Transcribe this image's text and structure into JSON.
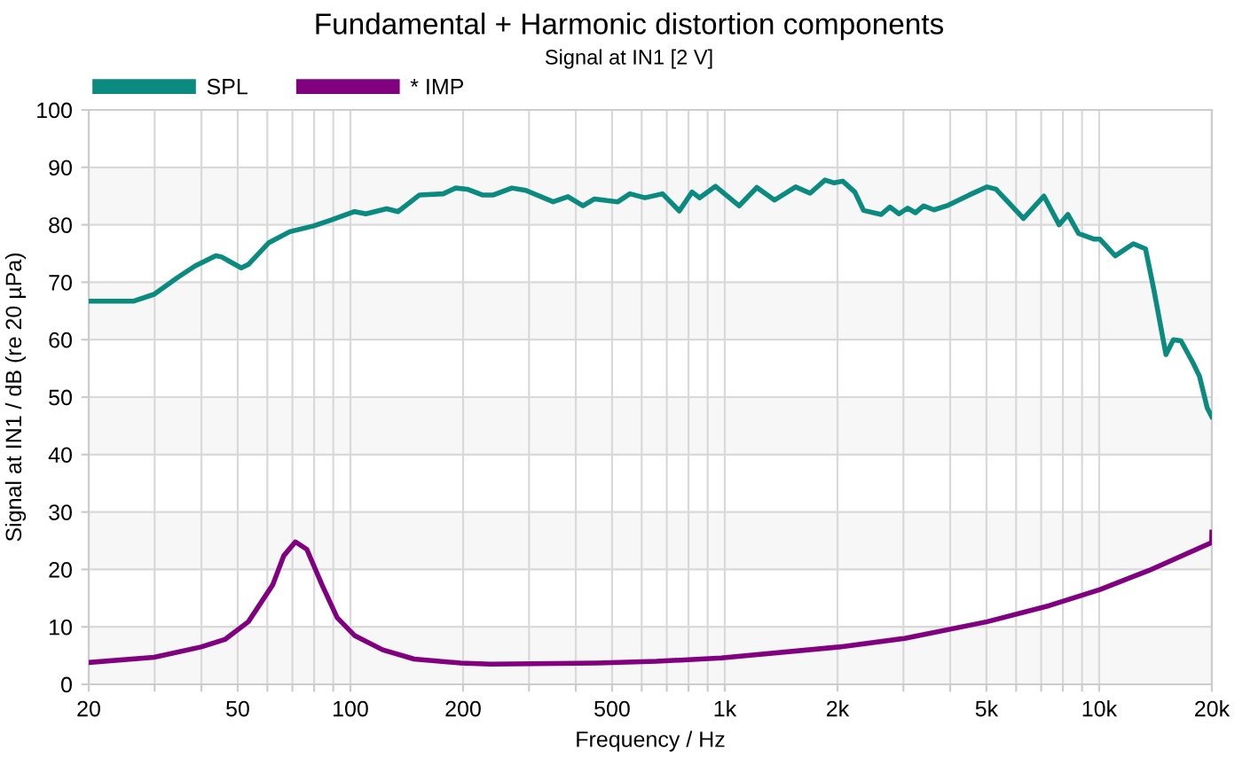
{
  "chart_data": {
    "type": "line",
    "title": "Fundamental + Harmonic distortion components",
    "subtitle": "Signal at IN1 [2 V]",
    "xlabel": "Frequency / Hz",
    "ylabel": "Signal at IN1 / dB (re 20 µPa)",
    "log": "x",
    "grid": true,
    "legend": "top left",
    "line_style": "solid",
    "marker": "none",
    "xlim": [
      20,
      20000
    ],
    "ylim": [
      0,
      100
    ],
    "xticks": [
      20,
      {
        "value": 30,
        "label": null
      },
      {
        "value": 40,
        "label": null
      },
      50,
      {
        "value": 60,
        "label": null
      },
      {
        "value": 70,
        "label": null
      },
      {
        "value": 80,
        "label": null
      },
      {
        "value": 90,
        "label": null
      },
      100,
      200,
      {
        "value": 300,
        "label": null
      },
      {
        "value": 400,
        "label": null
      },
      500,
      {
        "value": 600,
        "label": null
      },
      {
        "value": 700,
        "label": null
      },
      {
        "value": 800,
        "label": null
      },
      {
        "value": 900,
        "label": null
      },
      {
        "value": 1000,
        "label": "1k"
      },
      {
        "value": 2000,
        "label": "2k"
      },
      {
        "value": 3000,
        "label": null
      },
      {
        "value": 4000,
        "label": null
      },
      {
        "value": 5000,
        "label": "5k"
      },
      {
        "value": 6000,
        "label": null
      },
      {
        "value": 7000,
        "label": null
      },
      {
        "value": 8000,
        "label": null
      },
      {
        "value": 9000,
        "label": null
      },
      {
        "value": 10000,
        "label": "10k"
      },
      {
        "value": 20000,
        "label": "20k"
      }
    ],
    "yticks": [
      0,
      10,
      20,
      30,
      40,
      50,
      60,
      70,
      80,
      90,
      100
    ],
    "bands": [
      {
        "axis": "y",
        "from": 0,
        "to": 10,
        "color": "#f7f7f7"
      },
      {
        "axis": "y",
        "from": 20,
        "to": 30,
        "color": "#f7f7f7"
      },
      {
        "axis": "y",
        "from": 40,
        "to": 50,
        "color": "#f7f7f7"
      },
      {
        "axis": "y",
        "from": 60,
        "to": 70,
        "color": "#f7f7f7"
      },
      {
        "axis": "y",
        "from": 80,
        "to": 90,
        "color": "#f7f7f7"
      }
    ],
    "series": [
      {
        "name": "SPL",
        "color": "#0b8a80",
        "x": [
          20,
          26.3,
          29.9,
          34.5,
          38.4,
          43.7,
          45.3,
          51.1,
          53.4,
          60.6,
          68.9,
          79.7,
          88.6,
          102.6,
          110,
          125,
          134,
          153,
          177,
          191,
          205,
          225,
          241,
          270,
          294,
          348,
          381,
          418,
          449,
          518,
          558,
          612,
          682,
          756,
          818,
          856,
          944,
          1092,
          1218,
          1358,
          1546,
          1690,
          1852,
          1960,
          2066,
          2225,
          2348,
          2618,
          2760,
          2920,
          3080,
          3230,
          3400,
          3620,
          3950,
          4500,
          5020,
          5300,
          6280,
          7120,
          7820,
          8250,
          8810,
          9700,
          10050,
          11040,
          12340,
          13300,
          14000,
          15080,
          15780,
          16540,
          17830,
          18540,
          19440,
          19980
        ],
        "values": [
          66.7,
          66.7,
          67.9,
          70.8,
          72.8,
          74.6,
          74.4,
          72.5,
          73.1,
          76.9,
          78.8,
          79.8,
          80.8,
          82.3,
          81.9,
          82.8,
          82.3,
          85.2,
          85.4,
          86.4,
          86.2,
          85.2,
          85.2,
          86.4,
          86.0,
          84.0,
          84.9,
          83.3,
          84.5,
          84.0,
          85.4,
          84.7,
          85.4,
          82.4,
          85.7,
          84.7,
          86.7,
          83.3,
          86.5,
          84.3,
          86.6,
          85.5,
          87.8,
          87.3,
          87.6,
          85.7,
          82.5,
          81.8,
          83.1,
          81.9,
          82.9,
          82.1,
          83.3,
          82.6,
          83.4,
          85.2,
          86.6,
          86.2,
          81.1,
          85.0,
          80.0,
          81.8,
          78.5,
          77.5,
          77.5,
          74.6,
          76.7,
          75.8,
          68.7,
          57.4,
          60.0,
          59.8,
          55.9,
          53.6,
          48.1,
          46.6
        ]
      },
      {
        "name": "* IMP",
        "color": "#800080",
        "x": [
          20,
          29.9,
          39.9,
          46.2,
          53.4,
          62.0,
          66.4,
          71.3,
          76.5,
          84.0,
          92.2,
          102.6,
          122,
          148,
          197,
          237,
          456,
          657,
          980,
          2020,
          3020,
          5020,
          7360,
          10050,
          13560,
          19980,
          20000
        ],
        "values": [
          3.8,
          4.7,
          6.5,
          7.8,
          10.9,
          17.3,
          22.4,
          24.8,
          23.5,
          17.3,
          11.6,
          8.5,
          6.0,
          4.4,
          3.7,
          3.5,
          3.7,
          4.0,
          4.6,
          6.5,
          8.0,
          10.9,
          13.7,
          16.5,
          19.8,
          24.7,
          26.5
        ]
      }
    ]
  }
}
